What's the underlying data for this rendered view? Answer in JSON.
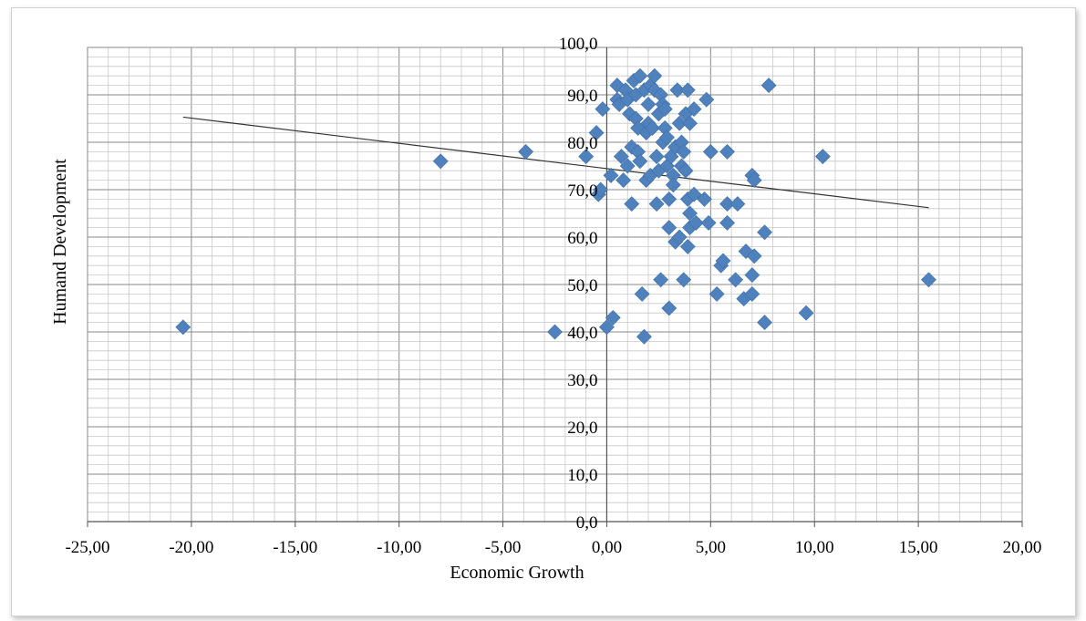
{
  "chart_data": {
    "type": "scatter",
    "title": "",
    "xlabel": "Economic Growth",
    "ylabel": "Humand Development",
    "xlim": [
      -25,
      20
    ],
    "ylim": [
      0,
      100
    ],
    "grid": true,
    "x_tick_labels": [
      "-25,00",
      "-20,00",
      "-15,00",
      "-10,00",
      "-5,00",
      "0,00",
      "5,00",
      "10,00",
      "15,00",
      "20,00"
    ],
    "y_tick_labels": [
      "0,0",
      "10,0",
      "20,0",
      "30,0",
      "40,0",
      "50,0",
      "60,0",
      "70,0",
      "80,0",
      "90,0",
      "100,0"
    ],
    "marker_color": "#4f81bd",
    "trendline": {
      "color": "#333333",
      "x": [
        -20.4,
        15.5
      ],
      "y": [
        85.3,
        66.2
      ]
    },
    "series": [
      {
        "points": [
          [
            -20.4,
            41
          ],
          [
            -8,
            76
          ],
          [
            -3.9,
            78
          ],
          [
            -2.5,
            40
          ],
          [
            -1,
            77
          ],
          [
            -0.5,
            82
          ],
          [
            -0.4,
            69
          ],
          [
            -0.3,
            70
          ],
          [
            -0.2,
            87
          ],
          [
            0,
            41
          ],
          [
            0.2,
            73
          ],
          [
            0.3,
            43
          ],
          [
            0.5,
            92
          ],
          [
            0.5,
            89
          ],
          [
            0.6,
            88
          ],
          [
            0.7,
            77
          ],
          [
            0.8,
            72
          ],
          [
            0.9,
            91
          ],
          [
            1,
            89
          ],
          [
            1,
            75
          ],
          [
            1.1,
            86
          ],
          [
            1.2,
            79
          ],
          [
            1.2,
            67
          ],
          [
            1.3,
            93
          ],
          [
            1.4,
            90
          ],
          [
            1.4,
            85
          ],
          [
            1.5,
            83
          ],
          [
            1.5,
            78
          ],
          [
            1.6,
            94
          ],
          [
            1.6,
            76
          ],
          [
            1.7,
            48
          ],
          [
            1.8,
            39
          ],
          [
            1.8,
            91
          ],
          [
            1.9,
            82
          ],
          [
            1.9,
            72
          ],
          [
            2,
            88
          ],
          [
            2,
            84
          ],
          [
            2.1,
            92
          ],
          [
            2.1,
            73
          ],
          [
            2.2,
            83
          ],
          [
            2.3,
            94
          ],
          [
            2.3,
            91
          ],
          [
            2.4,
            67
          ],
          [
            2.4,
            77
          ],
          [
            2.5,
            86
          ],
          [
            2.5,
            74
          ],
          [
            2.6,
            90
          ],
          [
            2.6,
            51
          ],
          [
            2.7,
            80
          ],
          [
            2.7,
            88
          ],
          [
            2.8,
            87
          ],
          [
            2.8,
            83
          ],
          [
            2.9,
            75
          ],
          [
            2.9,
            81
          ],
          [
            3,
            68
          ],
          [
            3,
            62
          ],
          [
            3,
            45
          ],
          [
            3.1,
            77
          ],
          [
            3.2,
            73
          ],
          [
            3.2,
            71
          ],
          [
            3.3,
            79
          ],
          [
            3.3,
            59
          ],
          [
            3.4,
            91
          ],
          [
            3.5,
            84
          ],
          [
            3.5,
            60
          ],
          [
            3.6,
            80
          ],
          [
            3.6,
            75
          ],
          [
            3.7,
            78
          ],
          [
            3.7,
            51
          ],
          [
            3.8,
            86
          ],
          [
            3.8,
            74
          ],
          [
            3.9,
            91
          ],
          [
            3.9,
            68
          ],
          [
            3.9,
            58
          ],
          [
            4,
            84
          ],
          [
            4,
            65
          ],
          [
            4,
            62
          ],
          [
            4.2,
            87
          ],
          [
            4.2,
            69
          ],
          [
            4.3,
            63
          ],
          [
            4.7,
            68
          ],
          [
            4.8,
            89
          ],
          [
            4.9,
            63
          ],
          [
            5,
            78
          ],
          [
            5.3,
            48
          ],
          [
            5.5,
            54
          ],
          [
            5.6,
            55
          ],
          [
            5.8,
            78
          ],
          [
            5.8,
            67
          ],
          [
            5.8,
            63
          ],
          [
            6.2,
            51
          ],
          [
            6.3,
            67
          ],
          [
            6.6,
            47
          ],
          [
            6.7,
            57
          ],
          [
            7,
            73
          ],
          [
            7,
            52
          ],
          [
            7.1,
            72
          ],
          [
            7.1,
            56
          ],
          [
            7,
            48
          ],
          [
            7.6,
            61
          ],
          [
            7.6,
            42
          ],
          [
            7.8,
            92
          ],
          [
            9.6,
            44
          ],
          [
            10.4,
            77
          ],
          [
            15.5,
            51
          ]
        ]
      }
    ]
  }
}
